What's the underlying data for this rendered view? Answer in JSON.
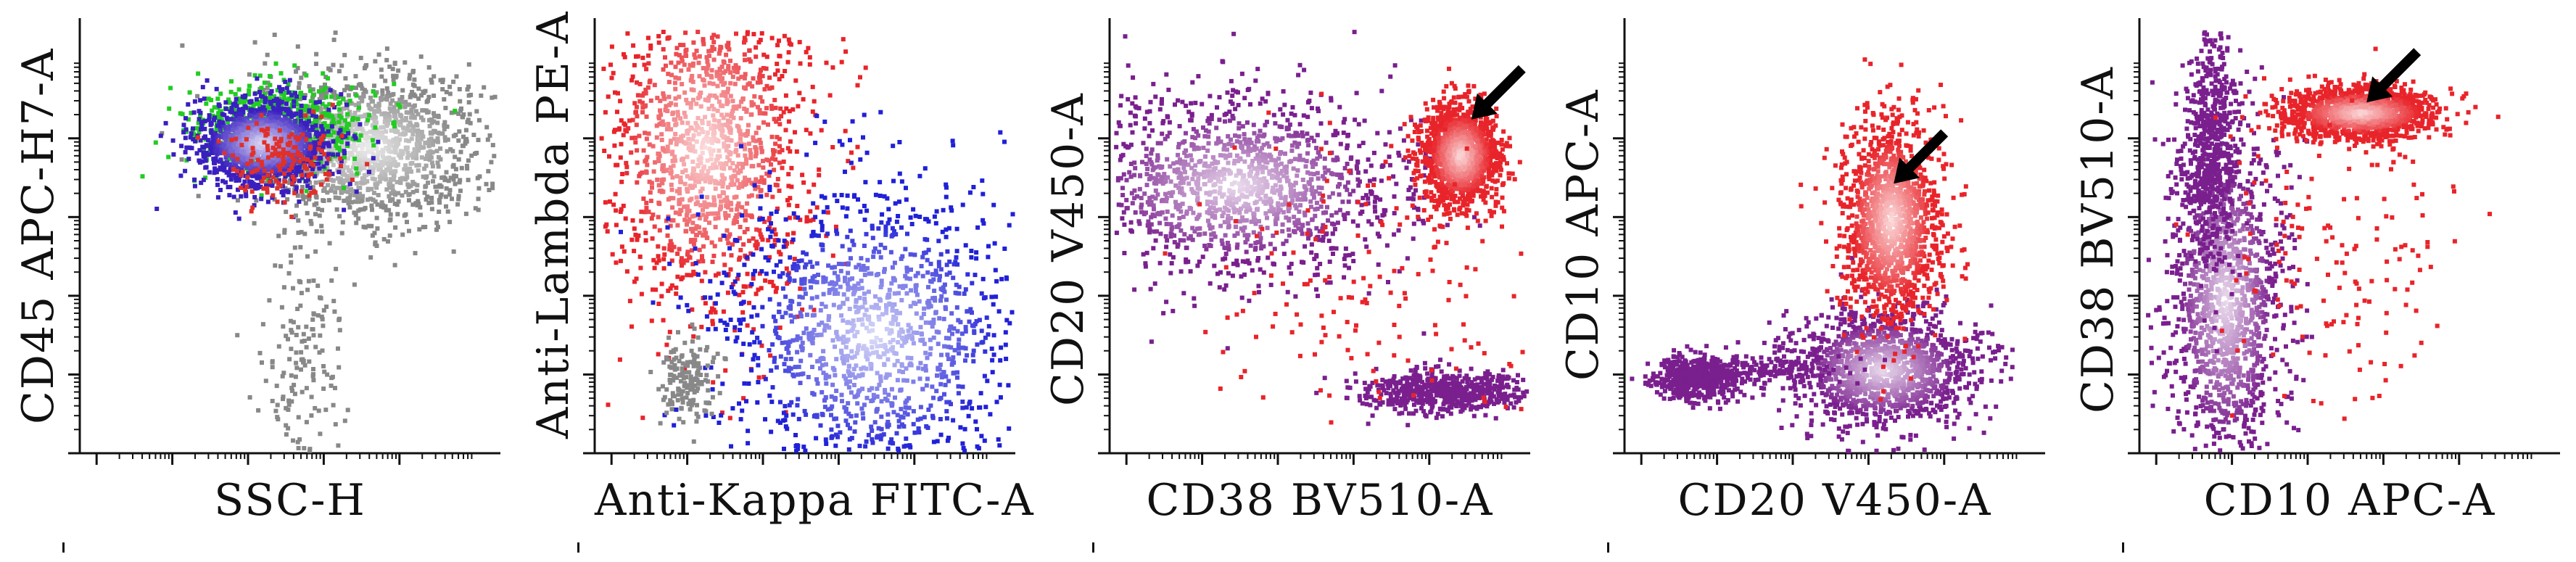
{
  "chart_data": [
    {
      "type": "scatter",
      "plot_kind": "flow-cytometry density dot plot",
      "xlabel": "SSC-H",
      "ylabel": "CD45 APC-H7-A",
      "xscale": "log",
      "yscale": "log",
      "populations": [
        {
          "name": "gray",
          "color": "#888888",
          "center_x": 0.68,
          "center_y": 0.72,
          "spread_x": 0.14,
          "spread_y": 0.09,
          "density": "high"
        },
        {
          "name": "green",
          "color": "#22cc22",
          "center_x": 0.47,
          "center_y": 0.77,
          "spread_x": 0.11,
          "spread_y": 0.05,
          "density": "medium"
        },
        {
          "name": "blue-violet",
          "color": "#3a1fc0",
          "center_x": 0.43,
          "center_y": 0.73,
          "spread_x": 0.08,
          "spread_y": 0.05,
          "density": "high"
        },
        {
          "name": "red",
          "color": "#e0302a",
          "center_x": 0.48,
          "center_y": 0.69,
          "spread_x": 0.06,
          "spread_y": 0.05,
          "density": "low"
        },
        {
          "name": "gray-tail",
          "color": "#888888",
          "center_x": 0.52,
          "center_y": 0.22,
          "spread_x": 0.05,
          "spread_y": 0.14,
          "density": "low"
        }
      ],
      "arrow": null
    },
    {
      "type": "scatter",
      "plot_kind": "flow-cytometry density dot plot",
      "xlabel": "Anti-Kappa FITC-A",
      "ylabel": "Anti-Lambda PE-A",
      "xscale": "log",
      "yscale": "log",
      "populations": [
        {
          "name": "lambda-red",
          "color": "#e8242a",
          "center_x": 0.26,
          "center_y": 0.72,
          "spread_x": 0.13,
          "spread_y": 0.2,
          "density": "high"
        },
        {
          "name": "kappa-blue",
          "color": "#2020d8",
          "center_x": 0.66,
          "center_y": 0.28,
          "spread_x": 0.19,
          "spread_y": 0.18,
          "density": "high"
        },
        {
          "name": "gray",
          "color": "#888888",
          "center_x": 0.22,
          "center_y": 0.18,
          "spread_x": 0.03,
          "spread_y": 0.05,
          "density": "low"
        }
      ],
      "arrow": null
    },
    {
      "type": "scatter",
      "plot_kind": "flow-cytometry density dot plot",
      "xlabel": "CD38 BV510-A",
      "ylabel": "CD20 V450-A",
      "xscale": "log",
      "yscale": "log",
      "populations": [
        {
          "name": "main-purple",
          "color": "#7a1f8e",
          "center_x": 0.3,
          "center_y": 0.63,
          "spread_x": 0.2,
          "spread_y": 0.11,
          "density": "high"
        },
        {
          "name": "cd38-bright-red",
          "color": "#e8242a",
          "center_x": 0.83,
          "center_y": 0.7,
          "spread_x": 0.045,
          "spread_y": 0.06,
          "density": "high"
        },
        {
          "name": "cd20-neg",
          "color": "#7a1f8e",
          "center_x": 0.8,
          "center_y": 0.15,
          "spread_x": 0.1,
          "spread_y": 0.025,
          "density": "medium"
        },
        {
          "name": "scatter-red",
          "color": "#e8242a",
          "center_x": 0.62,
          "center_y": 0.4,
          "spread_x": 0.2,
          "spread_y": 0.18,
          "density": "low"
        }
      ],
      "arrow": {
        "tip_x": 0.86,
        "tip_y": 0.78
      }
    },
    {
      "type": "scatter",
      "plot_kind": "flow-cytometry density dot plot",
      "xlabel": "CD20 V450-A",
      "ylabel": "CD10 APC-A",
      "xscale": "log",
      "yscale": "log",
      "populations": [
        {
          "name": "main-purple",
          "color": "#7a1f8e",
          "center_x": 0.61,
          "center_y": 0.2,
          "spread_x": 0.11,
          "spread_y": 0.07,
          "density": "high"
        },
        {
          "name": "cd10-pos-red",
          "color": "#e8242a",
          "center_x": 0.63,
          "center_y": 0.55,
          "spread_x": 0.06,
          "spread_y": 0.12,
          "density": "high"
        },
        {
          "name": "cd20-neg",
          "color": "#7a1f8e",
          "center_x": 0.17,
          "center_y": 0.18,
          "spread_x": 0.05,
          "spread_y": 0.025,
          "density": "medium"
        },
        {
          "name": "bridge",
          "color": "#7a1f8e",
          "center_x": 0.35,
          "center_y": 0.2,
          "spread_x": 0.1,
          "spread_y": 0.02,
          "density": "low"
        }
      ],
      "arrow": {
        "tip_x": 0.64,
        "tip_y": 0.63
      }
    },
    {
      "type": "scatter",
      "plot_kind": "flow-cytometry density dot plot",
      "xlabel": "CD10 APC-A",
      "ylabel": "CD38 BV510-A",
      "xscale": "log",
      "yscale": "log",
      "populations": [
        {
          "name": "main-purple",
          "color": "#7a1f8e",
          "center_x": 0.2,
          "center_y": 0.36,
          "spread_x": 0.07,
          "spread_y": 0.2,
          "density": "high"
        },
        {
          "name": "vertical-spur",
          "color": "#7a1f8e",
          "center_x": 0.17,
          "center_y": 0.72,
          "spread_x": 0.03,
          "spread_y": 0.14,
          "density": "medium"
        },
        {
          "name": "cd38-bright-red",
          "color": "#e8242a",
          "center_x": 0.52,
          "center_y": 0.8,
          "spread_x": 0.09,
          "spread_y": 0.03,
          "density": "high"
        },
        {
          "name": "scatter-red",
          "color": "#e8242a",
          "center_x": 0.45,
          "center_y": 0.45,
          "spread_x": 0.15,
          "spread_y": 0.2,
          "density": "low"
        }
      ],
      "arrow": {
        "tip_x": 0.54,
        "tip_y": 0.82
      }
    }
  ]
}
